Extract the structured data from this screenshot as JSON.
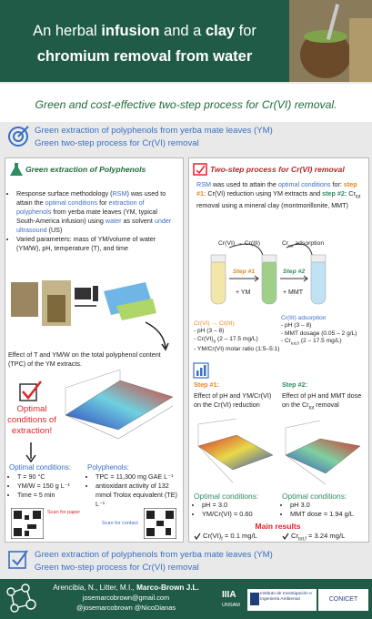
{
  "header": {
    "title": [
      "An herbal ",
      "infusion",
      " and a ",
      "clay",
      " for",
      "chromium removal from water"
    ]
  },
  "subtitle": "Green and cost-effective two-step process for Cr(VI) removal.",
  "objectives": [
    "Green extraction of polyphenols from yerba mate leaves (YM)",
    "Green two-step process for Cr(VI) removal"
  ],
  "left": {
    "heading": "Green extraction of Polyphenols",
    "bullets": [
      [
        "Response surface methodology (",
        "RSM",
        ") was used to attain the ",
        "optimal conditions",
        " for ",
        "extraction of polyphenols",
        " from yerba mate leaves (YM, typical South-America infusion) using ",
        "water",
        " as solvent ",
        "under ultrasound",
        " (US)"
      ],
      [
        "Varied parameters: mass of YM/volume of water (YM/W), pH, temperature (T), and time"
      ]
    ],
    "figure_caption": "Effect of T and YM/W on the total polyphenol content (TPC) of the YM extracts.",
    "callout": "Optimal conditions of extraction!",
    "optimal": {
      "title": "Optimal conditions:",
      "items": [
        "T = 90 °C",
        "YM/W = 150 g L⁻¹",
        "Time = 5 min"
      ]
    },
    "polyphenols": {
      "title": "Polyphenols:",
      "items": [
        "TPC = 11,300 mg GAE L⁻¹",
        "antioxidant activity of 132 mmol Trolox equivalent (TE) L⁻¹"
      ]
    },
    "qr": [
      "Scan for paper",
      "Scan for contact"
    ]
  },
  "right": {
    "heading": "Two-step process for Cr(VI) removal",
    "intro": [
      "RSM",
      " was used to attain the ",
      "optimal conditions",
      " for: ",
      "step #1:",
      " Cr(VI) reduction using YM extracts and ",
      "step #2:",
      " Cr",
      "tot",
      " removal using a mineral clay (montmorillonite, MMT)"
    ],
    "diagram": {
      "reaction": "Cr(VI) → Cr(III)",
      "adsorption": [
        "Cr",
        "tot",
        " adsorption"
      ],
      "steps": [
        "Step #1",
        "Step #2"
      ],
      "reagents": [
        "+ YM",
        "+ MMT"
      ]
    },
    "params": [
      {
        "title": "Cr(VI) → Cr(III)",
        "items": [
          [
            "pH (3 – 8)"
          ],
          [
            "Cr(VI)",
            "0",
            " (2 – 17.5 mg/L)"
          ],
          [
            "YM/Cr(VI) molar ratio (1:5–5:1)"
          ]
        ]
      },
      {
        "title": "Cr(III) adsorption",
        "items": [
          [
            "pH (3 – 8)"
          ],
          [
            "MMT dosage (0.05 – 2 g/L)"
          ],
          [
            "Cr",
            "tot,0",
            " (2 – 17.5 mg/L)"
          ]
        ]
      }
    ],
    "steps": [
      {
        "label": "Step #1:",
        "text": [
          "Effect of pH and YM/Cr(VI) on the Cr(VI) reduction"
        ],
        "optimal_title": "Optimal conditions:",
        "optimal": [
          "pH = 3.0",
          "YM/Cr(VI) = 0.60"
        ]
      },
      {
        "label": "Step #2:",
        "text": [
          "Effect of pH and MMT dose on the Cr",
          "tot",
          " removal"
        ],
        "optimal_title": "Optimal conditions:",
        "optimal": [
          "pH 3.0",
          "MMT dose = 1.94 g/L"
        ]
      }
    ],
    "main_results": {
      "title": "Main results",
      "items": [
        [
          "Cr(VI)",
          "f",
          " = 0.1 mg/L"
        ],
        [
          "Cr",
          "tot,f",
          " = 3.24 mg/L"
        ]
      ]
    }
  },
  "conclusions": [
    "Green extraction of polyphenols from yerba mate leaves (YM)",
    "Green two-step process for Cr(VI) removal"
  ],
  "footer": {
    "authors": [
      "Arencibia, N., Litter, M.I., ",
      "Marco-Brown J.L."
    ],
    "email": "josemarcobrown@gmail.com",
    "handles": "@josemarcobrown  @NicoDianas",
    "logos": {
      "iiia": "IIIA",
      "unsam": "UNSAM",
      "institute": "Instituto de Investigación e Ingeniería Ambiental",
      "conicet": "CONICET"
    }
  }
}
